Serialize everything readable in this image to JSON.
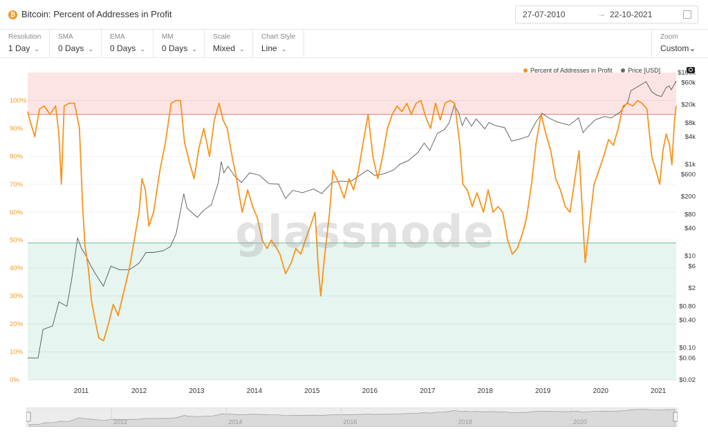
{
  "header": {
    "logo_glyph": "₿",
    "title": "Bitcoin: Percent of Addresses in Profit",
    "date_from": "27-07-2010",
    "date_arrow": "→",
    "date_to": "22-10-2021"
  },
  "controls": [
    {
      "label": "Resolution",
      "value": "1 Day"
    },
    {
      "label": "SMA",
      "value": "0 Days"
    },
    {
      "label": "EMA",
      "value": "0 Days"
    },
    {
      "label": "MM",
      "value": "0 Days"
    },
    {
      "label": "Scale",
      "value": "Mixed"
    },
    {
      "label": "Chart Style",
      "value": "Line"
    }
  ],
  "zoom": {
    "label": "Zoom",
    "value": "Custom"
  },
  "legend": {
    "series1": "Percent of Addresses in Profit",
    "series2": "Price [USD]"
  },
  "watermark": "glassnode",
  "colors": {
    "profit": "#f7931a",
    "price": "#555555",
    "upper_band": "#fde4e4",
    "lower_band": "#e6f5ef",
    "upper_line": "#e87d7d",
    "lower_line": "#6dbb95"
  },
  "chart_data": {
    "type": "line",
    "x_range": [
      "2010-07-27",
      "2021-10-22"
    ],
    "x_ticks": [
      "2011",
      "2012",
      "2013",
      "2014",
      "2015",
      "2016",
      "2017",
      "2018",
      "2019",
      "2020",
      "2021"
    ],
    "left_axis": {
      "ticks": [
        "0%",
        "10%",
        "20%",
        "30%",
        "40%",
        "50%",
        "60%",
        "70%",
        "80%",
        "90%",
        "100%"
      ],
      "range": [
        0,
        110
      ]
    },
    "right_axis": {
      "scale": "log",
      "ticks": [
        "$0.02",
        "$0.06",
        "$0.10",
        "$0.40",
        "$0.80",
        "$2",
        "$6",
        "$10",
        "$40",
        "$80",
        "$200",
        "$600",
        "$1k",
        "$4k",
        "$8k",
        "$20k",
        "$60k",
        "$100k"
      ]
    },
    "bands": [
      {
        "from": 95,
        "to": 110,
        "color": "#fde4e4"
      },
      {
        "from": 0,
        "to": 49,
        "color": "#e6f5ef"
      }
    ],
    "series": [
      {
        "name": "Percent of Addresses in Profit",
        "axis": "left",
        "points": [
          [
            "2010-07-27",
            96
          ],
          [
            "2010-08-15",
            92
          ],
          [
            "2010-09-10",
            87
          ],
          [
            "2010-10-10",
            97
          ],
          [
            "2010-11-10",
            98
          ],
          [
            "2010-12-15",
            95
          ],
          [
            "2011-01-20",
            98
          ],
          [
            "2011-02-10",
            88
          ],
          [
            "2011-02-25",
            70
          ],
          [
            "2011-03-15",
            98
          ],
          [
            "2011-04-15",
            99
          ],
          [
            "2011-05-20",
            99
          ],
          [
            "2011-06-20",
            90
          ],
          [
            "2011-07-10",
            62
          ],
          [
            "2011-07-25",
            48
          ],
          [
            "2011-08-15",
            40
          ],
          [
            "2011-09-05",
            28
          ],
          [
            "2011-09-25",
            22
          ],
          [
            "2011-10-20",
            15
          ],
          [
            "2011-11-20",
            14
          ],
          [
            "2011-12-20",
            20
          ],
          [
            "2012-01-20",
            27
          ],
          [
            "2012-02-20",
            23
          ],
          [
            "2012-03-20",
            30
          ],
          [
            "2012-05-01",
            40
          ],
          [
            "2012-06-01",
            50
          ],
          [
            "2012-07-01",
            60
          ],
          [
            "2012-07-20",
            72
          ],
          [
            "2012-08-10",
            68
          ],
          [
            "2012-09-01",
            55
          ],
          [
            "2012-10-01",
            60
          ],
          [
            "2012-11-10",
            75
          ],
          [
            "2012-12-15",
            85
          ],
          [
            "2013-01-20",
            99
          ],
          [
            "2013-02-20",
            100
          ],
          [
            "2013-03-20",
            100
          ],
          [
            "2013-04-15",
            85
          ],
          [
            "2013-05-15",
            78
          ],
          [
            "2013-06-15",
            72
          ],
          [
            "2013-07-15",
            83
          ],
          [
            "2013-08-15",
            90
          ],
          [
            "2013-09-20",
            80
          ],
          [
            "2013-10-20",
            93
          ],
          [
            "2013-11-20",
            99
          ],
          [
            "2013-12-15",
            93
          ],
          [
            "2014-01-10",
            90
          ],
          [
            "2014-02-10",
            80
          ],
          [
            "2014-03-10",
            72
          ],
          [
            "2014-04-15",
            60
          ],
          [
            "2014-05-20",
            68
          ],
          [
            "2014-06-20",
            62
          ],
          [
            "2014-07-20",
            58
          ],
          [
            "2014-08-20",
            50
          ],
          [
            "2014-09-20",
            47
          ],
          [
            "2014-10-15",
            50
          ],
          [
            "2014-11-10",
            48
          ],
          [
            "2014-12-10",
            45
          ],
          [
            "2015-01-15",
            38
          ],
          [
            "2015-02-20",
            42
          ],
          [
            "2015-03-20",
            47
          ],
          [
            "2015-04-20",
            45
          ],
          [
            "2015-05-20",
            50
          ],
          [
            "2015-06-20",
            55
          ],
          [
            "2015-07-20",
            60
          ],
          [
            "2015-08-10",
            40
          ],
          [
            "2015-08-25",
            30
          ],
          [
            "2015-09-20",
            45
          ],
          [
            "2015-10-20",
            60
          ],
          [
            "2015-11-10",
            75
          ],
          [
            "2015-12-20",
            70
          ],
          [
            "2016-01-20",
            65
          ],
          [
            "2016-02-20",
            72
          ],
          [
            "2016-03-20",
            68
          ],
          [
            "2016-04-20",
            75
          ],
          [
            "2016-05-20",
            85
          ],
          [
            "2016-06-20",
            95
          ],
          [
            "2016-07-20",
            80
          ],
          [
            "2016-08-20",
            72
          ],
          [
            "2016-09-20",
            80
          ],
          [
            "2016-10-20",
            90
          ],
          [
            "2016-11-20",
            95
          ],
          [
            "2016-12-20",
            98
          ],
          [
            "2017-01-20",
            96
          ],
          [
            "2017-02-20",
            99
          ],
          [
            "2017-03-20",
            95
          ],
          [
            "2017-04-20",
            99
          ],
          [
            "2017-05-20",
            100
          ],
          [
            "2017-06-20",
            94
          ],
          [
            "2017-07-20",
            90
          ],
          [
            "2017-08-20",
            99
          ],
          [
            "2017-09-20",
            93
          ],
          [
            "2017-10-20",
            99
          ],
          [
            "2017-11-20",
            100
          ],
          [
            "2017-12-20",
            99
          ],
          [
            "2018-01-20",
            85
          ],
          [
            "2018-02-10",
            70
          ],
          [
            "2018-03-10",
            68
          ],
          [
            "2018-04-10",
            62
          ],
          [
            "2018-05-10",
            67
          ],
          [
            "2018-06-20",
            60
          ],
          [
            "2018-07-20",
            68
          ],
          [
            "2018-08-20",
            60
          ],
          [
            "2018-09-20",
            62
          ],
          [
            "2018-10-20",
            60
          ],
          [
            "2018-11-20",
            50
          ],
          [
            "2018-12-20",
            45
          ],
          [
            "2019-01-20",
            47
          ],
          [
            "2019-02-20",
            52
          ],
          [
            "2019-03-20",
            58
          ],
          [
            "2019-04-20",
            70
          ],
          [
            "2019-05-20",
            85
          ],
          [
            "2019-06-20",
            95
          ],
          [
            "2019-07-20",
            88
          ],
          [
            "2019-08-20",
            82
          ],
          [
            "2019-09-20",
            72
          ],
          [
            "2019-10-20",
            68
          ],
          [
            "2019-11-20",
            62
          ],
          [
            "2019-12-20",
            60
          ],
          [
            "2020-01-20",
            72
          ],
          [
            "2020-02-15",
            82
          ],
          [
            "2020-03-12",
            55
          ],
          [
            "2020-03-25",
            42
          ],
          [
            "2020-04-20",
            55
          ],
          [
            "2020-05-20",
            70
          ],
          [
            "2020-06-20",
            75
          ],
          [
            "2020-07-20",
            80
          ],
          [
            "2020-08-20",
            86
          ],
          [
            "2020-09-20",
            84
          ],
          [
            "2020-10-20",
            90
          ],
          [
            "2020-11-20",
            98
          ],
          [
            "2020-12-20",
            99
          ],
          [
            "2021-01-20",
            98
          ],
          [
            "2021-02-20",
            100
          ],
          [
            "2021-03-20",
            99
          ],
          [
            "2021-04-20",
            97
          ],
          [
            "2021-05-20",
            80
          ],
          [
            "2021-06-20",
            74
          ],
          [
            "2021-07-10",
            70
          ],
          [
            "2021-07-30",
            82
          ],
          [
            "2021-08-20",
            88
          ],
          [
            "2021-09-10",
            84
          ],
          [
            "2021-09-25",
            77
          ],
          [
            "2021-10-10",
            92
          ],
          [
            "2021-10-22",
            98
          ]
        ]
      },
      {
        "name": "Price [USD]",
        "axis": "right",
        "points": [
          [
            "2010-07-27",
            0.06
          ],
          [
            "2010-10-01",
            0.06
          ],
          [
            "2010-11-01",
            0.25
          ],
          [
            "2011-01-01",
            0.3
          ],
          [
            "2011-02-10",
            1
          ],
          [
            "2011-04-01",
            0.8
          ],
          [
            "2011-05-01",
            3
          ],
          [
            "2011-06-08",
            25
          ],
          [
            "2011-07-01",
            15
          ],
          [
            "2011-08-01",
            10
          ],
          [
            "2011-09-01",
            6
          ],
          [
            "2011-10-01",
            4
          ],
          [
            "2011-11-18",
            2.2
          ],
          [
            "2012-01-05",
            6
          ],
          [
            "2012-03-01",
            5
          ],
          [
            "2012-05-01",
            5
          ],
          [
            "2012-07-01",
            7
          ],
          [
            "2012-08-15",
            12
          ],
          [
            "2012-10-01",
            12
          ],
          [
            "2012-12-01",
            13
          ],
          [
            "2013-01-15",
            16
          ],
          [
            "2013-02-20",
            30
          ],
          [
            "2013-04-10",
            230
          ],
          [
            "2013-05-01",
            110
          ],
          [
            "2013-07-05",
            70
          ],
          [
            "2013-08-15",
            100
          ],
          [
            "2013-10-01",
            130
          ],
          [
            "2013-11-15",
            400
          ],
          [
            "2013-12-04",
            1150
          ],
          [
            "2013-12-20",
            650
          ],
          [
            "2014-01-15",
            900
          ],
          [
            "2014-02-25",
            560
          ],
          [
            "2014-04-10",
            400
          ],
          [
            "2014-06-01",
            650
          ],
          [
            "2014-08-01",
            580
          ],
          [
            "2014-10-01",
            380
          ],
          [
            "2014-12-01",
            370
          ],
          [
            "2015-01-14",
            180
          ],
          [
            "2015-03-01",
            270
          ],
          [
            "2015-05-01",
            240
          ],
          [
            "2015-07-10",
            290
          ],
          [
            "2015-09-01",
            230
          ],
          [
            "2015-11-04",
            400
          ],
          [
            "2016-01-01",
            430
          ],
          [
            "2016-03-01",
            420
          ],
          [
            "2016-06-17",
            750
          ],
          [
            "2016-08-01",
            570
          ],
          [
            "2016-10-01",
            620
          ],
          [
            "2016-12-01",
            760
          ],
          [
            "2017-01-05",
            1000
          ],
          [
            "2017-03-01",
            1200
          ],
          [
            "2017-05-01",
            1800
          ],
          [
            "2017-06-10",
            2900
          ],
          [
            "2017-07-15",
            2000
          ],
          [
            "2017-09-01",
            4700
          ],
          [
            "2017-10-15",
            5700
          ],
          [
            "2017-11-15",
            8000
          ],
          [
            "2017-12-17",
            19500
          ],
          [
            "2018-01-15",
            13000
          ],
          [
            "2018-02-06",
            7000
          ],
          [
            "2018-03-01",
            10500
          ],
          [
            "2018-04-05",
            6800
          ],
          [
            "2018-05-05",
            9700
          ],
          [
            "2018-06-28",
            5900
          ],
          [
            "2018-07-25",
            8200
          ],
          [
            "2018-09-01",
            7000
          ],
          [
            "2018-11-01",
            6300
          ],
          [
            "2018-12-15",
            3200
          ],
          [
            "2019-02-01",
            3500
          ],
          [
            "2019-04-01",
            4100
          ],
          [
            "2019-05-15",
            8000
          ],
          [
            "2019-06-26",
            13000
          ],
          [
            "2019-08-01",
            10500
          ],
          [
            "2019-10-01",
            8300
          ],
          [
            "2019-12-15",
            7100
          ],
          [
            "2020-02-12",
            10300
          ],
          [
            "2020-03-12",
            4900
          ],
          [
            "2020-04-15",
            6800
          ],
          [
            "2020-06-01",
            9500
          ],
          [
            "2020-07-27",
            11000
          ],
          [
            "2020-09-05",
            10200
          ],
          [
            "2020-11-01",
            13700
          ],
          [
            "2020-12-20",
            23000
          ],
          [
            "2021-01-08",
            40000
          ],
          [
            "2021-02-15",
            48000
          ],
          [
            "2021-04-14",
            63000
          ],
          [
            "2021-05-20",
            38000
          ],
          [
            "2021-06-22",
            32000
          ],
          [
            "2021-07-20",
            30000
          ],
          [
            "2021-08-20",
            47000
          ],
          [
            "2021-09-07",
            51000
          ],
          [
            "2021-09-21",
            42000
          ],
          [
            "2021-10-20",
            64000
          ],
          [
            "2021-10-22",
            61000
          ]
        ]
      }
    ]
  },
  "navigator": {
    "labels": [
      "2012",
      "2014",
      "2016",
      "2018",
      "2020"
    ]
  }
}
